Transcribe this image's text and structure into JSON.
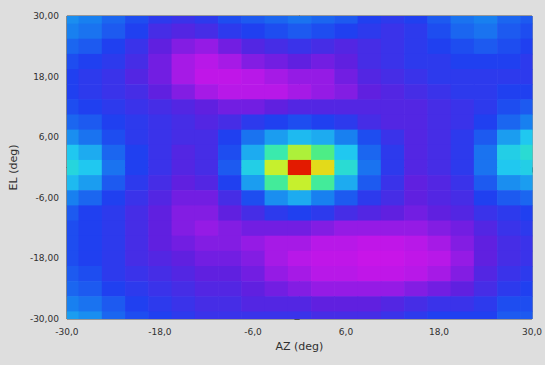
{
  "chart_data": {
    "type": "heatmap",
    "x_label": "AZ (deg)",
    "y_label": "EL (deg)",
    "x": [
      -30,
      -27,
      -24,
      -21,
      -18,
      -15,
      -12,
      -9,
      -6,
      -3,
      0,
      3,
      6,
      9,
      12,
      15,
      18,
      21,
      24,
      27,
      30
    ],
    "y": [
      30,
      27,
      24,
      21,
      18,
      15,
      12,
      9,
      6,
      3,
      0,
      -3,
      -6,
      -9,
      -12,
      -15,
      -18,
      -21,
      -24,
      -27,
      -30
    ],
    "z": [
      [
        42,
        40,
        36,
        32,
        28,
        26,
        28,
        32,
        34,
        36,
        38,
        36,
        34,
        30,
        28,
        30,
        34,
        38,
        40,
        36,
        34
      ],
      [
        40,
        38,
        34,
        30,
        24,
        22,
        24,
        28,
        30,
        32,
        34,
        32,
        30,
        28,
        26,
        28,
        32,
        36,
        38,
        34,
        32
      ],
      [
        36,
        34,
        30,
        26,
        20,
        16,
        14,
        18,
        22,
        24,
        26,
        24,
        22,
        24,
        26,
        28,
        30,
        32,
        34,
        32,
        30
      ],
      [
        32,
        30,
        28,
        24,
        18,
        12,
        10,
        12,
        16,
        18,
        20,
        18,
        20,
        24,
        26,
        28,
        28,
        30,
        30,
        30,
        28
      ],
      [
        30,
        28,
        26,
        22,
        18,
        12,
        8,
        8,
        10,
        12,
        14,
        14,
        18,
        22,
        24,
        26,
        28,
        28,
        28,
        28,
        28
      ],
      [
        30,
        28,
        26,
        24,
        20,
        16,
        12,
        10,
        10,
        10,
        12,
        14,
        16,
        20,
        22,
        24,
        26,
        28,
        28,
        30,
        30
      ],
      [
        32,
        30,
        28,
        26,
        24,
        22,
        20,
        18,
        18,
        20,
        22,
        22,
        22,
        22,
        22,
        22,
        24,
        26,
        28,
        32,
        34
      ],
      [
        36,
        34,
        30,
        28,
        26,
        24,
        22,
        24,
        28,
        30,
        32,
        30,
        28,
        24,
        22,
        22,
        24,
        26,
        30,
        36,
        40
      ],
      [
        42,
        38,
        32,
        28,
        26,
        24,
        24,
        30,
        38,
        44,
        48,
        46,
        40,
        32,
        26,
        22,
        24,
        28,
        34,
        44,
        50
      ],
      [
        50,
        46,
        36,
        30,
        26,
        22,
        24,
        32,
        46,
        62,
        76,
        66,
        50,
        36,
        28,
        22,
        24,
        28,
        38,
        52,
        56
      ],
      [
        54,
        50,
        38,
        30,
        26,
        22,
        24,
        34,
        52,
        78,
        98,
        82,
        56,
        38,
        28,
        22,
        24,
        28,
        38,
        50,
        52
      ],
      [
        48,
        44,
        34,
        28,
        24,
        20,
        22,
        30,
        44,
        64,
        78,
        64,
        46,
        34,
        26,
        20,
        22,
        26,
        34,
        42,
        44
      ],
      [
        40,
        36,
        30,
        26,
        22,
        18,
        18,
        24,
        32,
        42,
        46,
        40,
        34,
        28,
        24,
        20,
        22,
        24,
        30,
        34,
        36
      ],
      [
        34,
        30,
        28,
        24,
        20,
        16,
        16,
        20,
        24,
        28,
        30,
        28,
        24,
        22,
        20,
        18,
        20,
        22,
        26,
        28,
        30
      ],
      [
        32,
        30,
        28,
        24,
        20,
        16,
        14,
        16,
        18,
        18,
        18,
        16,
        14,
        14,
        14,
        14,
        16,
        18,
        22,
        26,
        28
      ],
      [
        32,
        30,
        28,
        24,
        20,
        18,
        16,
        16,
        14,
        12,
        12,
        10,
        10,
        8,
        8,
        10,
        12,
        16,
        20,
        24,
        26
      ],
      [
        32,
        30,
        28,
        24,
        22,
        20,
        18,
        18,
        16,
        12,
        10,
        8,
        8,
        6,
        6,
        8,
        10,
        14,
        20,
        24,
        26
      ],
      [
        34,
        32,
        28,
        26,
        24,
        22,
        20,
        20,
        18,
        14,
        12,
        10,
        10,
        8,
        8,
        10,
        12,
        16,
        22,
        26,
        28
      ],
      [
        36,
        34,
        30,
        28,
        26,
        24,
        22,
        22,
        20,
        18,
        16,
        14,
        14,
        14,
        14,
        16,
        18,
        20,
        24,
        28,
        30
      ],
      [
        40,
        38,
        34,
        30,
        28,
        26,
        24,
        24,
        22,
        22,
        22,
        20,
        20,
        20,
        22,
        24,
        26,
        26,
        28,
        32,
        32
      ],
      [
        44,
        42,
        36,
        32,
        30,
        28,
        26,
        26,
        26,
        26,
        26,
        24,
        24,
        24,
        26,
        28,
        30,
        30,
        30,
        34,
        34
      ]
    ],
    "zlim": [
      0,
      100
    ],
    "xlim": [
      -30,
      30
    ],
    "xticks": [
      {
        "value": -30,
        "label": "-30,0"
      },
      {
        "value": -18,
        "label": "-18,0"
      },
      {
        "value": -6,
        "label": "-6,0"
      },
      {
        "value": 6,
        "label": "6,0"
      },
      {
        "value": 18,
        "label": "18,0"
      },
      {
        "value": 30,
        "label": "30,0"
      }
    ],
    "ylim": [
      -30,
      30
    ],
    "yticks": [
      {
        "value": -30,
        "label": "-30,00"
      },
      {
        "value": -18,
        "label": "-18,00"
      },
      {
        "value": -6,
        "label": "-6,00"
      },
      {
        "value": 6,
        "label": "6,00"
      },
      {
        "value": 18,
        "label": "18,00"
      },
      {
        "value": 30,
        "label": "30,00"
      }
    ],
    "grid": false
  }
}
